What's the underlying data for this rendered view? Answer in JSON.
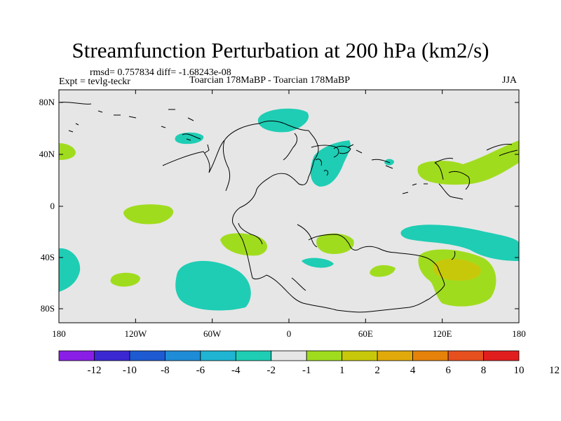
{
  "title": "Streamfunction Perturbation at 200 hPa (km2/s)",
  "stats": "rmsd= 0.757834 diff= -1.68243e-08",
  "experiment": "Expt = tevlg-teckr",
  "comparison": "Toarcian 178MaBP - Toarcian 178MaBP",
  "season": "JJA",
  "map": {
    "lat_ticks": [
      "80N",
      "40N",
      "0",
      "40S",
      "80S"
    ],
    "lon_ticks": [
      "180",
      "120W",
      "60W",
      "0",
      "60E",
      "120E",
      "180"
    ],
    "background_color": "#e6e6e6"
  },
  "colorbar": {
    "colors": [
      "#8a1ee6",
      "#3c28d2",
      "#1e5ad2",
      "#1e8cd7",
      "#1eb4d2",
      "#1ecdb4",
      "#e6e6e6",
      "#a0dc1e",
      "#c8c80a",
      "#e1aa0a",
      "#e6820a",
      "#e6501e",
      "#e11e1e"
    ],
    "labels": [
      "-12",
      "-10",
      "-8",
      "-6",
      "-4",
      "-2",
      "-1",
      "1",
      "2",
      "4",
      "6",
      "8",
      "10",
      "12"
    ]
  },
  "anomalies": [
    {
      "sign": "neg",
      "level": "-2"
    },
    {
      "sign": "neg",
      "level": "-2"
    },
    {
      "sign": "neg",
      "level": "-2"
    },
    {
      "sign": "neg",
      "level": "-2"
    },
    {
      "sign": "neg",
      "level": "-2"
    },
    {
      "sign": "neg",
      "level": "-2"
    },
    {
      "sign": "neg",
      "level": "-2"
    },
    {
      "sign": "neg",
      "level": "-2"
    },
    {
      "sign": "pos",
      "level": "1"
    },
    {
      "sign": "pos",
      "level": "1"
    },
    {
      "sign": "pos",
      "level": "1"
    },
    {
      "sign": "pos",
      "level": "1"
    },
    {
      "sign": "pos",
      "level": "1"
    },
    {
      "sign": "pos",
      "level": "1"
    },
    {
      "sign": "pos",
      "level": "1"
    },
    {
      "sign": "pos",
      "level": "1"
    },
    {
      "sign": "pos",
      "level": "2"
    }
  ]
}
